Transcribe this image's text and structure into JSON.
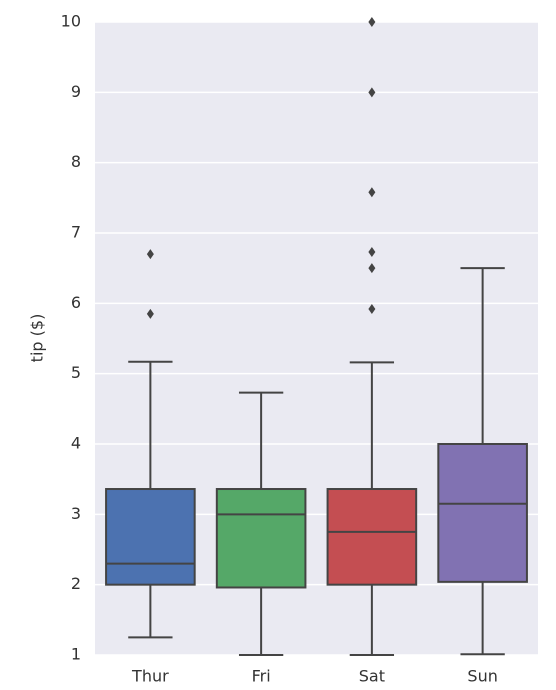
{
  "chart_data": {
    "type": "box",
    "ylabel": "tip ($)",
    "categories": [
      "Thur",
      "Fri",
      "Sat",
      "Sun"
    ],
    "colors": [
      "#4c72b0",
      "#55a868",
      "#c44e52",
      "#8172b2"
    ],
    "boxes": [
      {
        "low": 1.25,
        "q1": 2.0,
        "median": 2.3,
        "q3": 3.36,
        "high": 5.17,
        "outliers": [
          5.85,
          6.7
        ]
      },
      {
        "low": 1.0,
        "q1": 1.96,
        "median": 3.0,
        "q3": 3.36,
        "high": 4.73,
        "outliers": []
      },
      {
        "low": 1.0,
        "q1": 2.0,
        "median": 2.75,
        "q3": 3.36,
        "high": 5.16,
        "outliers": [
          5.92,
          6.5,
          6.73,
          7.58,
          9.0,
          10.0
        ]
      },
      {
        "low": 1.01,
        "q1": 2.04,
        "median": 3.15,
        "q3": 4.0,
        "high": 6.5,
        "outliers": []
      }
    ],
    "ylim": [
      1,
      10
    ],
    "yticks": [
      1,
      2,
      3,
      4,
      5,
      6,
      7,
      8,
      9,
      10
    ],
    "grid": true
  }
}
